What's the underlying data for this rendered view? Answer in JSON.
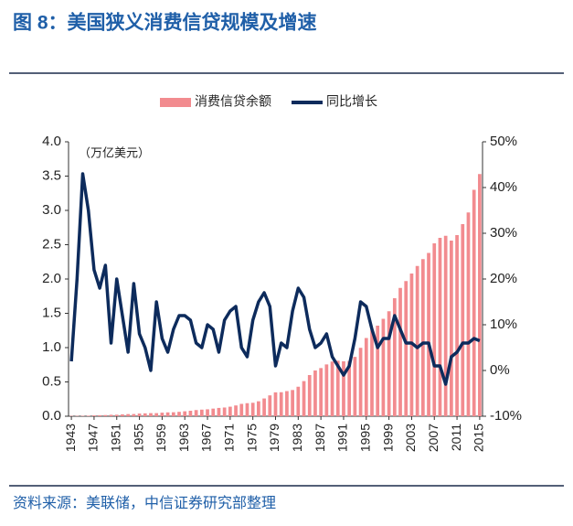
{
  "chart_data": {
    "type": "combo",
    "title": "图 8：美国狭义消费信贷规模及增速",
    "y_label": "（万亿美元）",
    "source": "资料来源：美联储，中信证券研究部整理",
    "x": [
      1943,
      1944,
      1945,
      1946,
      1947,
      1948,
      1949,
      1950,
      1951,
      1952,
      1953,
      1954,
      1955,
      1956,
      1957,
      1958,
      1959,
      1960,
      1961,
      1962,
      1963,
      1964,
      1965,
      1966,
      1967,
      1968,
      1969,
      1970,
      1971,
      1972,
      1973,
      1974,
      1975,
      1976,
      1977,
      1978,
      1979,
      1980,
      1981,
      1982,
      1983,
      1984,
      1985,
      1986,
      1987,
      1988,
      1989,
      1990,
      1991,
      1992,
      1993,
      1994,
      1995,
      1996,
      1997,
      1998,
      1999,
      2000,
      2001,
      2002,
      2003,
      2004,
      2005,
      2006,
      2007,
      2008,
      2009,
      2010,
      2011,
      2012,
      2013,
      2014,
      2015
    ],
    "xlim": [
      1942.5,
      2015.5
    ],
    "xticks": [
      1943,
      1947,
      1951,
      1955,
      1959,
      1963,
      1967,
      1971,
      1975,
      1979,
      1983,
      1987,
      1991,
      1995,
      1999,
      2003,
      2007,
      2011,
      2015
    ],
    "series": [
      {
        "name": "消费信贷余额",
        "type": "bar",
        "color": "#f28b8f",
        "values": [
          0.005,
          0.005,
          0.006,
          0.008,
          0.012,
          0.015,
          0.017,
          0.021,
          0.022,
          0.027,
          0.031,
          0.032,
          0.039,
          0.042,
          0.045,
          0.045,
          0.052,
          0.056,
          0.058,
          0.064,
          0.072,
          0.08,
          0.09,
          0.096,
          0.101,
          0.111,
          0.121,
          0.127,
          0.139,
          0.157,
          0.18,
          0.19,
          0.196,
          0.218,
          0.259,
          0.304,
          0.348,
          0.35,
          0.366,
          0.382,
          0.43,
          0.512,
          0.6,
          0.667,
          0.702,
          0.755,
          0.797,
          0.809,
          0.801,
          0.805,
          0.865,
          0.997,
          1.14,
          1.25,
          1.32,
          1.42,
          1.53,
          1.72,
          1.87,
          1.97,
          2.08,
          2.19,
          2.29,
          2.38,
          2.52,
          2.6,
          2.63,
          2.56,
          2.64,
          2.8,
          2.97,
          3.3,
          3.53
        ]
      },
      {
        "name": "同比增长",
        "type": "line",
        "axis": "y2",
        "color": "#0d2b5c",
        "values": [
          2,
          20,
          43,
          35,
          22,
          18,
          23,
          6,
          20,
          12,
          4,
          19,
          8,
          5,
          0,
          15,
          7,
          4,
          9,
          12,
          12,
          11,
          6,
          5,
          10,
          9,
          4,
          11,
          13,
          14,
          5,
          3,
          11,
          15,
          17,
          14,
          1,
          6,
          5,
          13,
          18,
          16,
          9,
          5,
          6,
          8,
          3,
          1,
          -1,
          1,
          7,
          15,
          14,
          9,
          5,
          7,
          7,
          12,
          9,
          6,
          6,
          5,
          6,
          6,
          1,
          1,
          -3,
          3,
          4,
          6,
          6,
          7,
          6.5
        ]
      }
    ],
    "ylim": [
      0,
      4
    ],
    "yticks": [
      {
        "value": 0,
        "label": "0.0"
      },
      {
        "value": 0.5,
        "label": "0.5"
      },
      {
        "value": 1,
        "label": "1.0"
      },
      {
        "value": 1.5,
        "label": "1.5"
      },
      {
        "value": 2,
        "label": "2.0"
      },
      {
        "value": 2.5,
        "label": "2.5"
      },
      {
        "value": 3,
        "label": "3.0"
      },
      {
        "value": 3.5,
        "label": "3.5"
      },
      {
        "value": 4,
        "label": "4.0"
      }
    ],
    "y2lim": [
      -10,
      50
    ],
    "y2ticks": [
      {
        "value": -10,
        "label": "-10%"
      },
      {
        "value": 0,
        "label": "0%"
      },
      {
        "value": 10,
        "label": "10%"
      },
      {
        "value": 20,
        "label": "20%"
      },
      {
        "value": 30,
        "label": "30%"
      },
      {
        "value": 40,
        "label": "40%"
      },
      {
        "value": 50,
        "label": "50%"
      }
    ],
    "legend": "top"
  }
}
